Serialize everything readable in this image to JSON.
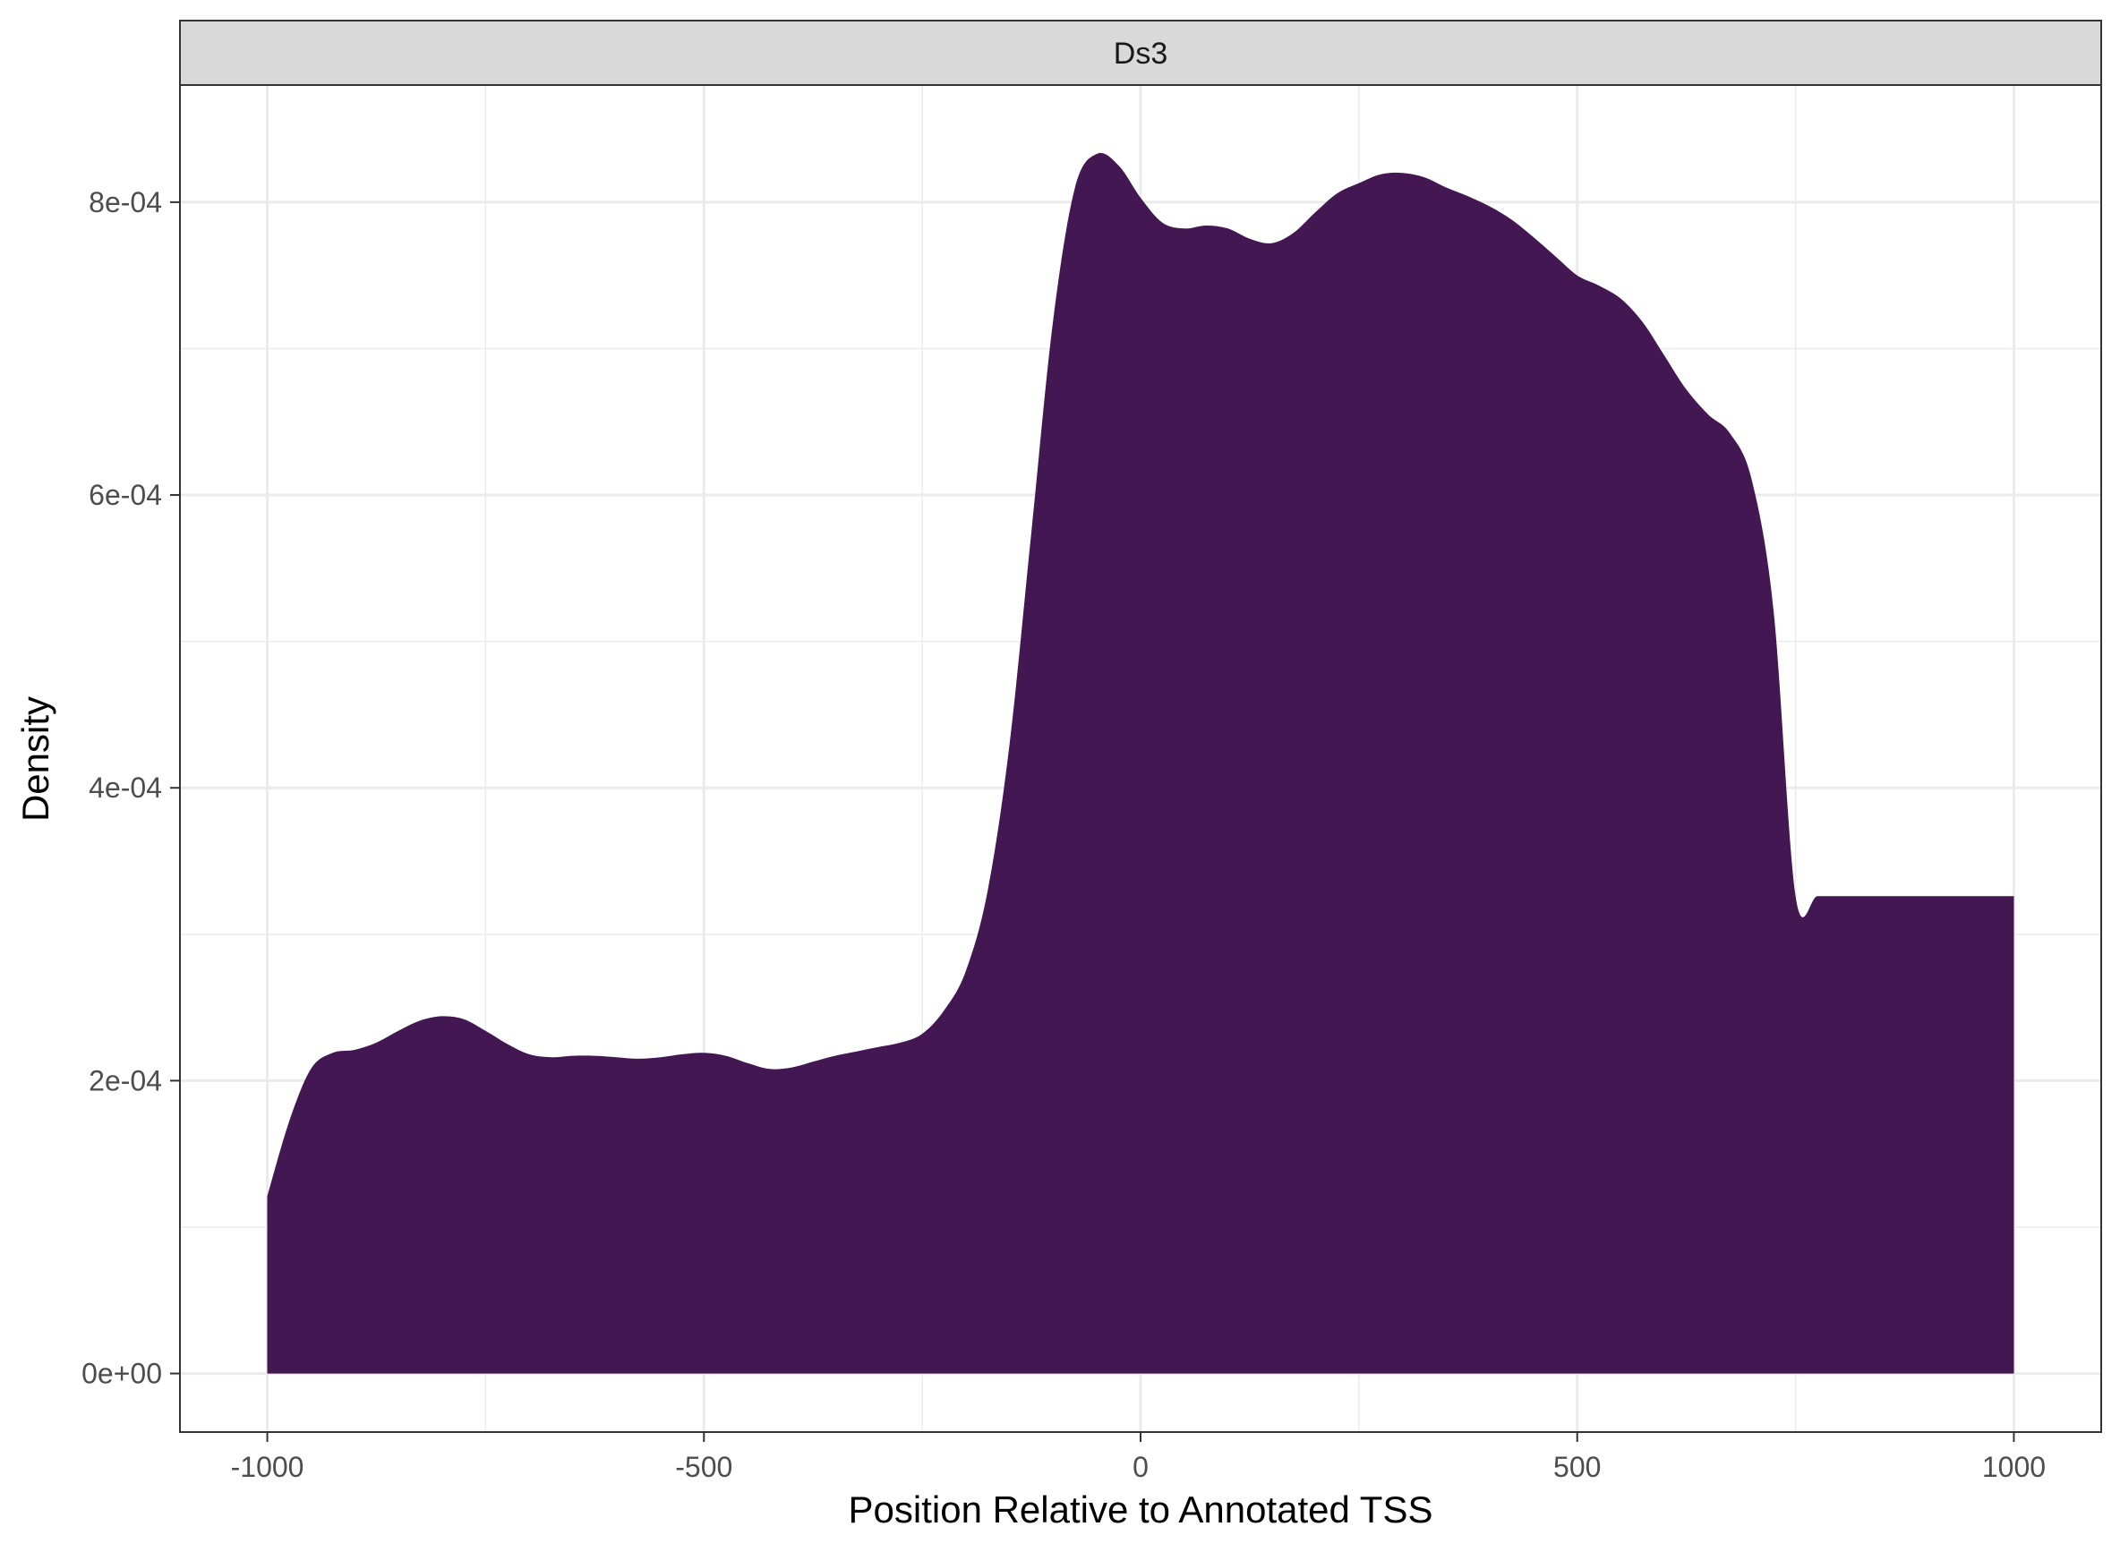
{
  "chart_data": {
    "type": "area",
    "facet_label": "Ds3",
    "xlabel": "Position Relative to Annotated TSS",
    "ylabel": "Density",
    "xlim": [
      -1100,
      1100
    ],
    "ylim": [
      -4e-05,
      0.00088
    ],
    "x_ticks": [
      -1000,
      -500,
      0,
      500,
      1000
    ],
    "x_tick_labels": [
      "-1000",
      "-500",
      "0",
      "500",
      "1000"
    ],
    "y_ticks": [
      0,
      0.0002,
      0.0004,
      0.0006,
      0.0008
    ],
    "y_tick_labels": [
      "0e+00",
      "2e-04",
      "4e-04",
      "6e-04",
      "8e-04"
    ],
    "grid": true,
    "fill_color": "#431751",
    "series": [
      {
        "x": [
          -1000,
          -975,
          -950,
          -925,
          -900,
          -875,
          -850,
          -825,
          -800,
          -775,
          -750,
          -725,
          -700,
          -675,
          -650,
          -625,
          -600,
          -575,
          -550,
          -525,
          -500,
          -475,
          -450,
          -425,
          -400,
          -375,
          -350,
          -325,
          -300,
          -275,
          -250,
          -225,
          -200,
          -175,
          -150,
          -125,
          -100,
          -75,
          -50,
          -25,
          0,
          25,
          50,
          75,
          100,
          125,
          150,
          175,
          200,
          225,
          250,
          275,
          300,
          325,
          350,
          375,
          400,
          425,
          450,
          475,
          500,
          525,
          550,
          575,
          600,
          625,
          650,
          675,
          700,
          725,
          750,
          775,
          800,
          825,
          850,
          875,
          900,
          925,
          950,
          975,
          1000
        ],
        "y": [
          0.000121,
          0.000172,
          0.000208,
          0.000219,
          0.000221,
          0.000226,
          0.000234,
          0.000241,
          0.000244,
          0.000242,
          0.000234,
          0.000225,
          0.000218,
          0.000216,
          0.000217,
          0.000217,
          0.000216,
          0.000215,
          0.000216,
          0.000218,
          0.000219,
          0.000217,
          0.000212,
          0.000208,
          0.000209,
          0.000213,
          0.000217,
          0.00022,
          0.000223,
          0.000226,
          0.000232,
          0.000248,
          0.000275,
          0.00033,
          0.00043,
          0.000575,
          0.00072,
          0.00081,
          0.000833,
          0.000825,
          0.000803,
          0.000786,
          0.000782,
          0.000784,
          0.000782,
          0.000775,
          0.000772,
          0.000779,
          0.000793,
          0.000806,
          0.000813,
          0.000819,
          0.00082,
          0.000817,
          0.00081,
          0.000804,
          0.000797,
          0.000788,
          0.000776,
          0.000763,
          0.00075,
          0.000743,
          0.000734,
          0.000718,
          0.000695,
          0.000672,
          0.000655,
          0.000642,
          0.00061,
          0.00052,
          0.000326,
          0.000326,
          0.000326,
          0.000326,
          0.000326,
          0.000326,
          0.000326,
          0.000326,
          0.000326,
          0.000326,
          0.000326
        ]
      }
    ]
  }
}
